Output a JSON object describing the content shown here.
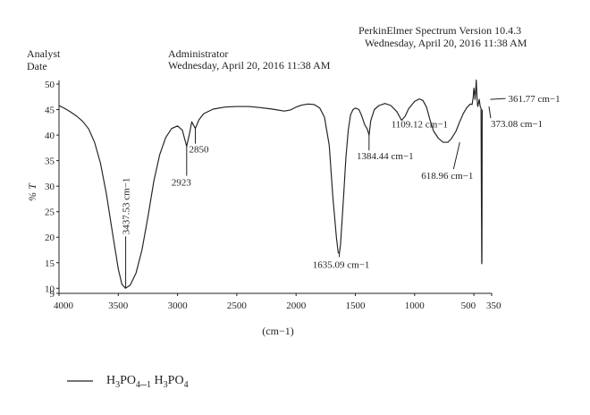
{
  "header": {
    "software": "PerkinElmer Spectrum Version 10.4.3",
    "software_time": "Wednesday, April 20, 2016 11:38 AM",
    "analyst_label": "Analyst",
    "date_label": "Date",
    "analyst_name": "Administrator",
    "analyst_time": "Wednesday, April 20, 2016 11:38 AM"
  },
  "chart_data": {
    "type": "line",
    "title": "",
    "xlabel": "(cm−1)",
    "ylabel": "% T",
    "x_unit": "cm−1",
    "x_reversed": true,
    "xlim": [
      4000,
      350
    ],
    "ylim": [
      9,
      50
    ],
    "x_ticks": [
      "4000",
      "3500",
      "3000",
      "2500",
      "2000",
      "1500",
      "1000",
      "500",
      "350"
    ],
    "y_ticks": [
      "50",
      "45",
      "40",
      "35",
      "30",
      "25",
      "20",
      "15",
      "10",
      "9"
    ],
    "series": [
      {
        "name": "H3PO4_1 H3PO4",
        "color": "#231f20",
        "points": [
          [
            4000,
            45.8
          ],
          [
            3950,
            45.2
          ],
          [
            3900,
            44.5
          ],
          [
            3850,
            43.7
          ],
          [
            3800,
            42.7
          ],
          [
            3750,
            41.2
          ],
          [
            3700,
            38.6
          ],
          [
            3650,
            34.5
          ],
          [
            3600,
            28.5
          ],
          [
            3550,
            21.0
          ],
          [
            3500,
            13.8
          ],
          [
            3470,
            10.8
          ],
          [
            3440,
            10.0
          ],
          [
            3400,
            10.6
          ],
          [
            3350,
            13.0
          ],
          [
            3300,
            17.5
          ],
          [
            3250,
            24.0
          ],
          [
            3200,
            31.0
          ],
          [
            3150,
            36.2
          ],
          [
            3100,
            39.5
          ],
          [
            3050,
            41.3
          ],
          [
            3000,
            41.8
          ],
          [
            2960,
            41.0
          ],
          [
            2923,
            37.8
          ],
          [
            2900,
            40.2
          ],
          [
            2880,
            42.6
          ],
          [
            2850,
            41.3
          ],
          [
            2820,
            43.0
          ],
          [
            2780,
            44.2
          ],
          [
            2700,
            45.1
          ],
          [
            2600,
            45.5
          ],
          [
            2500,
            45.6
          ],
          [
            2400,
            45.6
          ],
          [
            2300,
            45.4
          ],
          [
            2200,
            45.1
          ],
          [
            2100,
            44.7
          ],
          [
            2050,
            44.9
          ],
          [
            2000,
            45.5
          ],
          [
            1950,
            45.9
          ],
          [
            1900,
            46.1
          ],
          [
            1850,
            46.0
          ],
          [
            1800,
            45.3
          ],
          [
            1760,
            43.5
          ],
          [
            1720,
            38.0
          ],
          [
            1690,
            28.0
          ],
          [
            1660,
            20.0
          ],
          [
            1645,
            17.0
          ],
          [
            1635,
            16.8
          ],
          [
            1625,
            18.5
          ],
          [
            1600,
            27.5
          ],
          [
            1580,
            35.5
          ],
          [
            1560,
            41.0
          ],
          [
            1540,
            44.0
          ],
          [
            1520,
            45.0
          ],
          [
            1500,
            45.3
          ],
          [
            1470,
            45.0
          ],
          [
            1450,
            44.0
          ],
          [
            1420,
            42.0
          ],
          [
            1400,
            41.2
          ],
          [
            1384,
            40.0
          ],
          [
            1370,
            42.8
          ],
          [
            1340,
            45.0
          ],
          [
            1300,
            45.8
          ],
          [
            1250,
            46.2
          ],
          [
            1200,
            45.8
          ],
          [
            1150,
            44.6
          ],
          [
            1110,
            42.9
          ],
          [
            1080,
            43.7
          ],
          [
            1050,
            45.2
          ],
          [
            1000,
            46.6
          ],
          [
            960,
            47.1
          ],
          [
            930,
            46.8
          ],
          [
            900,
            45.5
          ],
          [
            870,
            43.0
          ],
          [
            840,
            40.8
          ],
          [
            800,
            39.4
          ],
          [
            760,
            38.6
          ],
          [
            720,
            38.6
          ],
          [
            690,
            39.3
          ],
          [
            650,
            40.8
          ],
          [
            620,
            42.6
          ],
          [
            590,
            44.2
          ],
          [
            560,
            45.4
          ],
          [
            530,
            46.1
          ],
          [
            515,
            46.0
          ],
          [
            505,
            47.5
          ],
          [
            500,
            49.2
          ],
          [
            495,
            48.4
          ],
          [
            490,
            47.0
          ],
          [
            485,
            48.8
          ],
          [
            480,
            50.8
          ],
          [
            477,
            49.0
          ],
          [
            473,
            47.0
          ],
          [
            468,
            45.6
          ],
          [
            462,
            46.1
          ],
          [
            455,
            47.0
          ],
          [
            450,
            46.2
          ],
          [
            446,
            45.5
          ],
          [
            440,
            45.3
          ],
          [
            437,
            28.0
          ],
          [
            434,
            14.8
          ],
          [
            432,
            15.2
          ],
          [
            430,
            45.0
          ]
        ]
      }
    ],
    "annotations": [
      {
        "text": "3437.53 cm−1",
        "x": 3437.53,
        "y": 10.0
      },
      {
        "text": "2923",
        "x": 2923,
        "y": 37.8
      },
      {
        "text": "2850",
        "x": 2850,
        "y": 41.3
      },
      {
        "text": "1635.09 cm−1",
        "x": 1635.09,
        "y": 16.8
      },
      {
        "text": "1384.44 cm−1",
        "x": 1384.44,
        "y": 40.0
      },
      {
        "text": "1109.12 cm−1",
        "x": 1109.12,
        "y": 42.9
      },
      {
        "text": "618.96 cm−1",
        "x": 618.96,
        "y": 38.6
      },
      {
        "text": "361.77 cm−1",
        "x": 361.77,
        "y": 47.0
      },
      {
        "text": "373.08 cm−1",
        "x": 373.08,
        "y": 45.6
      }
    ]
  },
  "legend": {
    "label": "H3PO4_1 H3PO4"
  }
}
